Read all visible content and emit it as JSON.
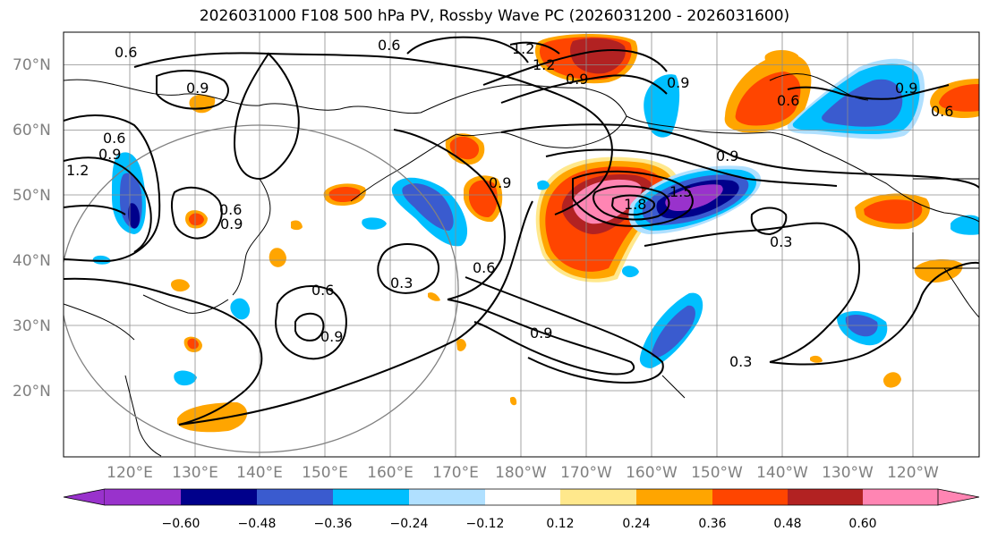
{
  "title": "2026031000 F108 500 hPa PV, Rossby Wave PC (2026031200 - 2026031600)",
  "lat_labels": [
    "70°N",
    "60°N",
    "50°N",
    "40°N",
    "30°N",
    "20°N"
  ],
  "lon_labels": [
    "120°E",
    "130°E",
    "140°E",
    "150°E",
    "160°E",
    "170°E",
    "180°W",
    "170°W",
    "160°W",
    "150°W",
    "140°W",
    "130°W",
    "120°W"
  ],
  "contour_labels": [
    "0.6",
    "0.6",
    "0.9",
    "1.2",
    "1.2",
    "0.9",
    "0.9",
    "0.6",
    "0.9",
    "0.6",
    "0.9",
    "0.9",
    "0.6",
    "0.6",
    "0.9",
    "0.6",
    "0.3",
    "0.6",
    "0.9",
    "0.9",
    "0.3",
    "0.3",
    "1.8",
    "1.5",
    "0.9",
    "1.2"
  ],
  "colorbar": {
    "ticks": [
      "−0.60",
      "−0.48",
      "−0.36",
      "−0.24",
      "−0.12",
      "0.12",
      "0.24",
      "0.36",
      "0.48",
      "0.60"
    ],
    "colors": [
      "#9932CC",
      "#00008B",
      "#3A5BCF",
      "#00BFFF",
      "#B0E0FF",
      "#FFFFFF",
      "#FFE88C",
      "#FFA500",
      "#FF4500",
      "#B22222",
      "#FF85B3"
    ]
  },
  "palette": {
    "pink": "#FF85B3",
    "darkred": "#B22222",
    "red": "#FF4500",
    "orange": "#FFA500",
    "yellow": "#FFE88C",
    "lightblue": "#B0E0FF",
    "cyan": "#00BFFF",
    "blue": "#3A5BCF",
    "navy": "#00008B",
    "purple": "#9932CC"
  }
}
